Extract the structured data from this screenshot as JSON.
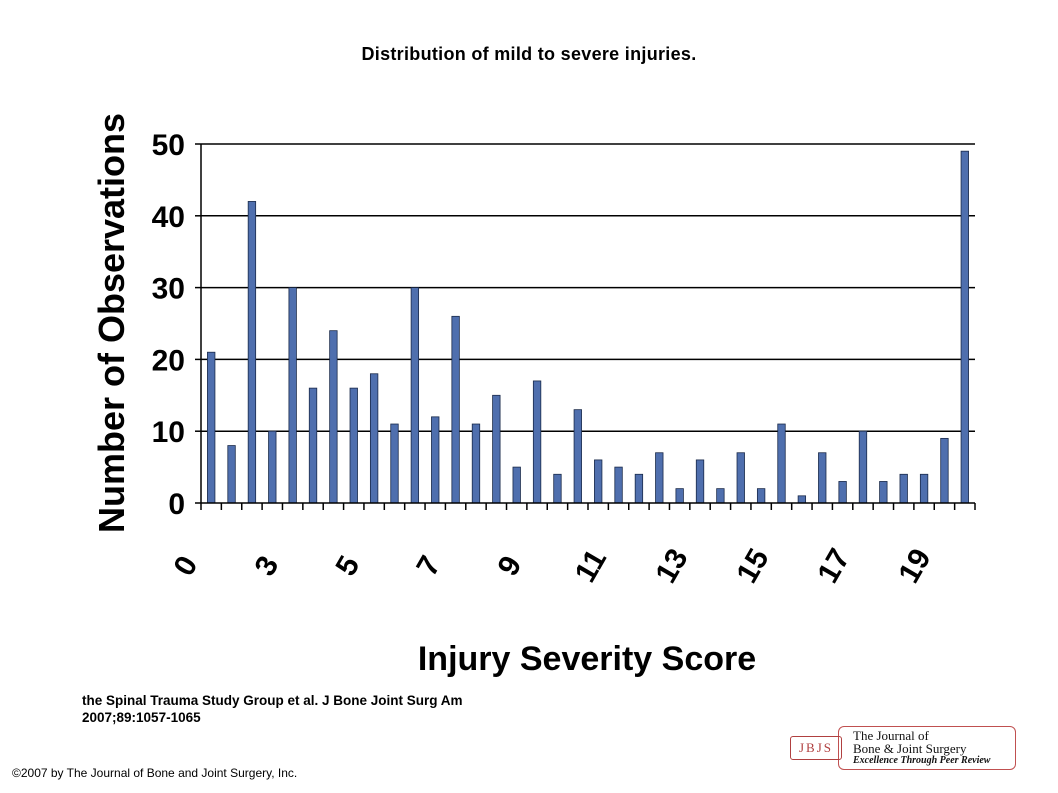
{
  "slide": {
    "title": "Distribution of mild to severe injuries.",
    "citation_line1": "the Spinal Trauma Study Group et al. J Bone Joint Surg Am",
    "citation_line2": "2007;89:1057-1065",
    "copyright": "©2007 by The Journal of Bone and Joint Surgery, Inc.",
    "logo": {
      "abbr": "JBJS",
      "line1": "The Journal of",
      "line2": "Bone & Joint Surgery",
      "line3": "Excellence Through Peer Review"
    }
  },
  "chart_data": {
    "type": "bar",
    "title": "",
    "xlabel": "Injury Severity Score",
    "ylabel": "Number of Observations",
    "ylim": [
      0,
      50
    ],
    "yticks": [
      0,
      10,
      20,
      30,
      40,
      50
    ],
    "grid": true,
    "legend": "none",
    "bar_color": "#4f6fae",
    "x_tick_labels": [
      "0",
      "3",
      "5",
      "7",
      "9",
      "11",
      "13",
      "15",
      "17",
      "19"
    ],
    "values": [
      21,
      8,
      42,
      10,
      30,
      16,
      24,
      16,
      18,
      11,
      30,
      12,
      26,
      11,
      15,
      5,
      17,
      4,
      13,
      6,
      5,
      4,
      7,
      2,
      6,
      2,
      7,
      2,
      11,
      1,
      7,
      3,
      10,
      3,
      4,
      4,
      9,
      49
    ]
  }
}
